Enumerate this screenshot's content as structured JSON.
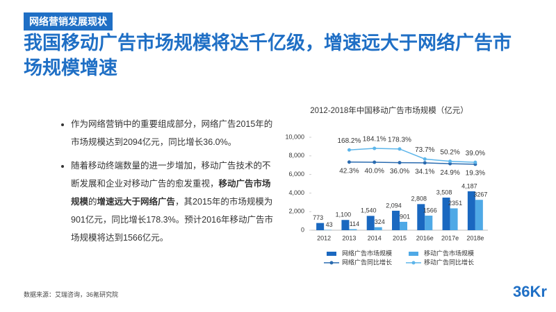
{
  "header": {
    "tag": "网络营销发展现状",
    "title": "我国移动广告市场规模将达千亿级，增速远大于网络广告市场规模增速"
  },
  "bullets": [
    [
      {
        "text": "作为网络营销中的重要组成部分，网络广告2015年的市场规模达到2094亿元，同比增长36.0%。",
        "bold": false
      }
    ],
    [
      {
        "text": "随着移动终端数量的进一步增加，移动广告技术的不断发展和企业对移动广告的愈发重视，",
        "bold": false
      },
      {
        "text": "移动广告市场规模",
        "bold": true
      },
      {
        "text": "的",
        "bold": false
      },
      {
        "text": "增速远大于网络广告",
        "bold": true
      },
      {
        "text": "，其2015年的市场规模为901亿元，同比增长178.3%。预计2016年移动广告市场规模将达到1566亿元。",
        "bold": false
      }
    ]
  ],
  "source": "数据来源：艾瑞咨询，36氪研究院",
  "logo": "36Kr",
  "chart_data": {
    "type": "bar",
    "title": "2012-2018年中国移动广告市场规模（亿元）",
    "categories": [
      "2012",
      "2013",
      "2014",
      "2015",
      "2016e",
      "2017e",
      "2018e"
    ],
    "ylim": [
      0,
      10000
    ],
    "yticks": [
      0,
      {
        "value": 2000,
        "label": "2,000"
      },
      {
        "value": 4000,
        "label": "4,000"
      },
      {
        "value": 6000,
        "label": "6,000"
      },
      {
        "value": 8000,
        "label": "8,000"
      },
      {
        "value": 10000,
        "label": "10,000"
      }
    ],
    "y2lim": [
      -667,
      300
    ],
    "grid": false,
    "series": [
      {
        "name": "网络广告市场规模",
        "type": "bar",
        "color": "#1a68c0",
        "values": [
          773,
          1100,
          1540,
          2094,
          2808,
          3508,
          4187
        ],
        "value_labels": [
          "773",
          "1,100",
          "1,540",
          "2,094",
          "2,808",
          "3,508",
          "4,187"
        ]
      },
      {
        "name": "移动广告市场规模",
        "type": "bar",
        "color": "#4fa9e6",
        "values": [
          43,
          114,
          324,
          901,
          1566,
          2351,
          3267
        ]
      },
      {
        "name": "网络广告同比增长",
        "type": "line",
        "axis": "y2",
        "color": "#2a6bb0",
        "values": [
          null,
          42.3,
          40.0,
          36.0,
          34.1,
          24.9,
          19.3
        ],
        "value_labels": [
          null,
          "42.3%",
          "40.0%",
          "36.0%",
          "34.1%",
          "24.9%",
          "19.3%"
        ]
      },
      {
        "name": "移动广告同比增长",
        "type": "line",
        "axis": "y2",
        "color": "#5cb5ea",
        "values": [
          null,
          168.2,
          184.1,
          178.3,
          73.7,
          50.2,
          39.0
        ],
        "value_labels": [
          null,
          "168.2%",
          "184.1%",
          "178.3%",
          "73.7%",
          "50.2%",
          "39.0%"
        ]
      }
    ]
  }
}
